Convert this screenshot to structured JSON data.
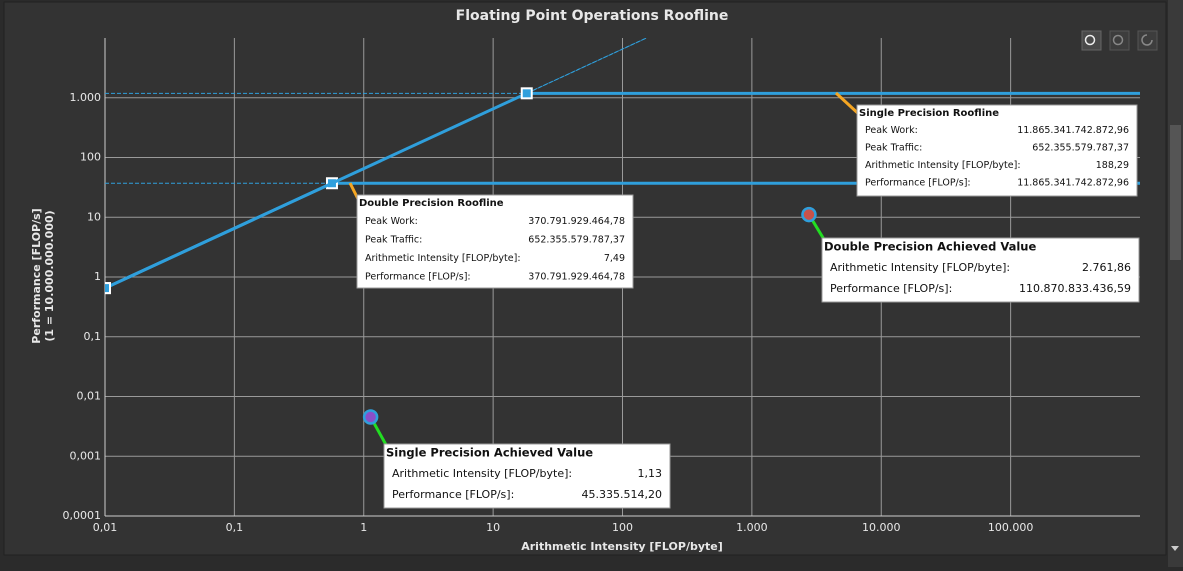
{
  "chart_data": {
    "type": "roofline",
    "title": "Floating Point Operations Roofline",
    "xlabel": "Arithmetic Intensity [FLOP/byte]",
    "ylabel": [
      "Performance [FLOP/s]",
      "(1 = 10.000.000.000)"
    ],
    "xscale": "log",
    "yscale": "log",
    "grid": true,
    "xlim": [
      0.01,
      1000000
    ],
    "ylim": [
      0.0001,
      10000
    ],
    "xticks": [
      {
        "value": 0.01,
        "label": "0,01"
      },
      {
        "value": 0.1,
        "label": "0,1"
      },
      1,
      10,
      100,
      {
        "value": 1000,
        "label": "1.000"
      },
      {
        "value": 10000,
        "label": "10.000"
      },
      {
        "value": 100000,
        "label": "100.000"
      }
    ],
    "yticks": [
      {
        "value": 0.0001,
        "label": "0,0001"
      },
      {
        "value": 0.001,
        "label": "0,001"
      },
      {
        "value": 0.01,
        "label": "0,01"
      },
      {
        "value": 0.1,
        "label": "0,1"
      },
      1,
      10,
      100,
      {
        "value": 1000,
        "label": "1.000"
      }
    ],
    "series": [
      {
        "name": "Double Precision Roofline",
        "color": "#2f9fdc",
        "x": [
          0.01,
          0.568,
          1000000
        ],
        "values": [
          0.652,
          37.08,
          37.08
        ]
      },
      {
        "name": "Single Precision Roofline",
        "color": "#2f9fdc",
        "x": [
          0.01,
          18.19,
          1000000
        ],
        "values": [
          0.652,
          1186.5,
          1186.5
        ]
      }
    ],
    "points": [
      {
        "name": "Double Precision Achieved Value",
        "color": "#c8524a",
        "x": 2761.86,
        "value": 11.087
      },
      {
        "name": "Single Precision Achieved Value",
        "color": "#8a4fc9",
        "x": 1.13,
        "value": 0.004534
      }
    ],
    "annotations": [
      {
        "title": "Double Precision Roofline",
        "rows": [
          [
            "Peak Work:",
            "370.791.929.464,78"
          ],
          [
            "Peak Traffic:",
            "652.355.579.787,37"
          ],
          [
            "Arithmetic Intensity [FLOP/byte]:",
            "7,49"
          ],
          [
            "Performance [FLOP/s]:",
            "370.791.929.464,78"
          ]
        ]
      },
      {
        "title": "Single Precision Roofline",
        "rows": [
          [
            "Peak Work:",
            "11.865.341.742.872,96"
          ],
          [
            "Peak Traffic:",
            "652.355.579.787,37"
          ],
          [
            "Arithmetic Intensity [FLOP/byte]:",
            "188,29"
          ],
          [
            "Performance [FLOP/s]:",
            "11.865.341.742.872,96"
          ]
        ]
      },
      {
        "title": "Double Precision Achieved Value",
        "rows": [
          [
            "Arithmetic Intensity [FLOP/byte]:",
            "2.761,86"
          ],
          [
            "Performance [FLOP/s]:",
            "110.870.833.436,59"
          ]
        ]
      },
      {
        "title": "Single Precision Achieved Value",
        "rows": [
          [
            "Arithmetic Intensity [FLOP/byte]:",
            "1,13"
          ],
          [
            "Performance [FLOP/s]:",
            "45.335.514,20"
          ]
        ]
      }
    ]
  }
}
